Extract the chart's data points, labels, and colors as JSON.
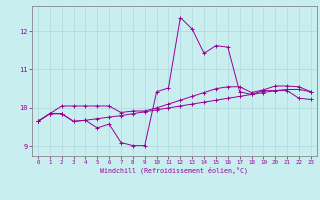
{
  "title": "",
  "xlabel": "Windchill (Refroidissement éolien,°C)",
  "background_color": "#c8eef0",
  "grid_color": "#b0d8da",
  "line_color": "#990099",
  "spine_color": "#888888",
  "xlim": [
    -0.5,
    23.5
  ],
  "ylim": [
    8.75,
    12.65
  ],
  "xticks": [
    0,
    1,
    2,
    3,
    4,
    5,
    6,
    7,
    8,
    9,
    10,
    11,
    12,
    13,
    14,
    15,
    16,
    17,
    18,
    19,
    20,
    21,
    22,
    23
  ],
  "yticks": [
    9,
    10,
    11,
    12
  ],
  "line1_x": [
    0,
    1,
    2,
    3,
    4,
    5,
    6,
    7,
    8,
    9,
    10,
    11,
    12,
    13,
    14,
    15,
    16,
    17,
    18,
    19,
    20,
    21,
    22,
    23
  ],
  "line1_y": [
    9.65,
    9.85,
    9.85,
    9.65,
    9.68,
    9.72,
    9.76,
    9.8,
    9.85,
    9.9,
    9.95,
    10.0,
    10.05,
    10.1,
    10.15,
    10.2,
    10.25,
    10.3,
    10.35,
    10.4,
    10.45,
    10.48,
    10.48,
    10.42
  ],
  "line2_x": [
    0,
    1,
    2,
    3,
    4,
    5,
    6,
    7,
    8,
    9,
    10,
    11,
    12,
    13,
    14,
    15,
    16,
    17,
    18,
    19,
    20,
    21,
    22,
    23
  ],
  "line2_y": [
    9.65,
    9.85,
    9.85,
    9.65,
    9.68,
    9.48,
    9.58,
    9.1,
    9.02,
    9.02,
    10.42,
    10.52,
    12.35,
    12.05,
    11.42,
    11.62,
    11.58,
    10.42,
    10.35,
    10.45,
    10.45,
    10.45,
    10.25,
    10.22
  ],
  "line3_x": [
    0,
    1,
    2,
    3,
    4,
    5,
    6,
    7,
    8,
    9,
    10,
    11,
    12,
    13,
    14,
    15,
    16,
    17,
    18,
    19,
    20,
    21,
    22,
    23
  ],
  "line3_y": [
    9.65,
    9.85,
    10.05,
    10.05,
    10.05,
    10.05,
    10.05,
    9.88,
    9.92,
    9.92,
    10.0,
    10.1,
    10.2,
    10.3,
    10.4,
    10.5,
    10.55,
    10.55,
    10.4,
    10.47,
    10.57,
    10.57,
    10.55,
    10.42
  ]
}
